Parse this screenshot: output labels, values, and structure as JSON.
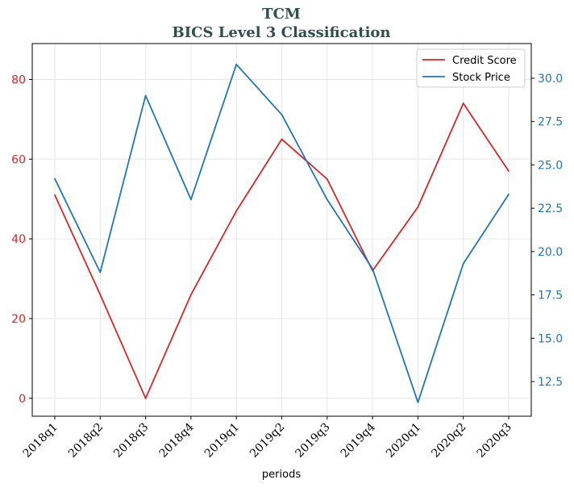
{
  "chart_data": {
    "type": "line",
    "title": "TCM",
    "subtitle": "BICS Level 3 Classification",
    "xlabel": "periods",
    "categories": [
      "2018q1",
      "2018q2",
      "2018q3",
      "2018q4",
      "2019q1",
      "2019q2",
      "2019q3",
      "2019q4",
      "2020q1",
      "2020q2",
      "2020q3"
    ],
    "y_left": {
      "ylim": [
        -4.5,
        89
      ],
      "ticks": [
        0,
        20,
        40,
        60,
        80
      ],
      "color": "#d62728"
    },
    "y_right": {
      "ylim": [
        10.5,
        32
      ],
      "ticks": [
        "12.5",
        "15.0",
        "17.5",
        "20.0",
        "22.5",
        "25.0",
        "27.5",
        "30.0"
      ],
      "color": "#1f77b4"
    },
    "series": [
      {
        "name": "Credit Score",
        "axis": "left",
        "color": "#d62728",
        "values": [
          51,
          26,
          0,
          26,
          47,
          65,
          55,
          32,
          48,
          74,
          57
        ]
      },
      {
        "name": "Stock Price",
        "axis": "right",
        "color": "#1f77b4",
        "values": [
          24.2,
          18.8,
          29.0,
          23.0,
          30.8,
          27.9,
          23.0,
          19.0,
          11.3,
          19.3,
          23.3
        ]
      }
    ],
    "grid": true,
    "legend_position": "top-right"
  }
}
